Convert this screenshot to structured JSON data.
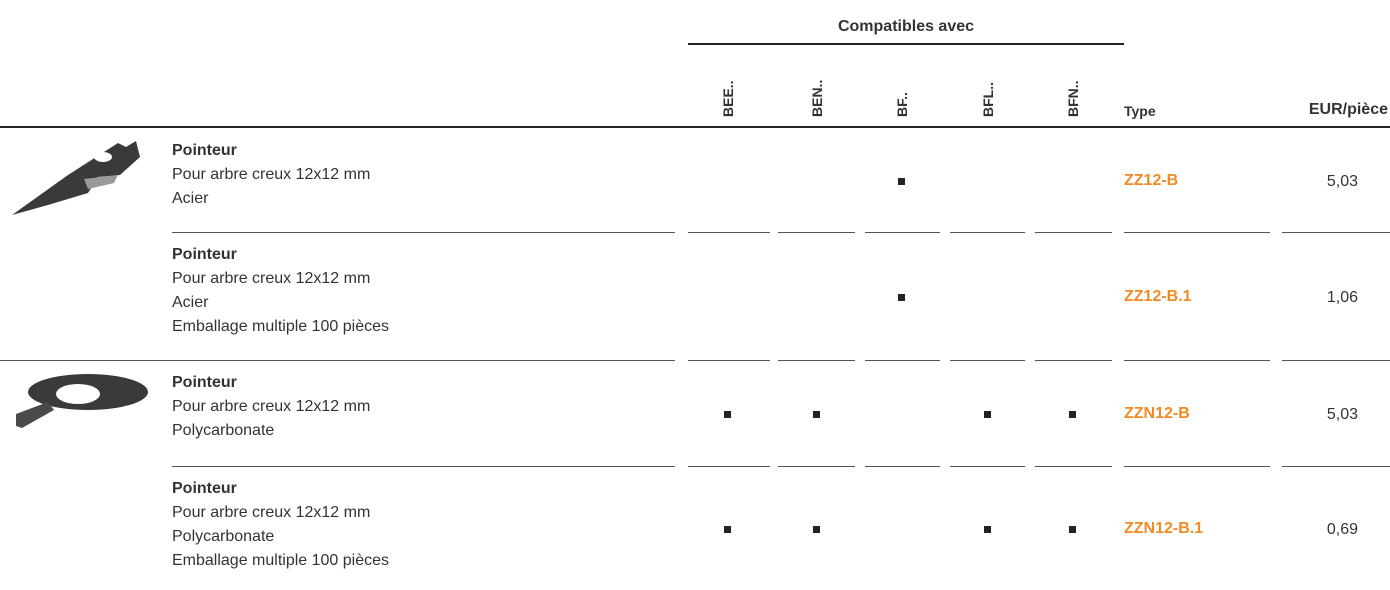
{
  "header": {
    "group_title": "Compatibles avec",
    "columns": [
      "BEE..",
      "BEN..",
      "BF..",
      "BFL..",
      "BFN.."
    ],
    "type_title": "Type",
    "price_title": "EUR/pièce"
  },
  "rows": [
    {
      "title": "Pointeur",
      "lines": [
        "Pour arbre creux 12x12 mm",
        "Acier"
      ],
      "compatible": [
        false,
        false,
        true,
        false,
        false
      ],
      "type": "ZZ12-B",
      "price": "5,03"
    },
    {
      "title": "Pointeur",
      "lines": [
        "Pour arbre creux 12x12 mm",
        "Acier",
        "Emballage multiple 100 pièces"
      ],
      "compatible": [
        false,
        false,
        true,
        false,
        false
      ],
      "type": "ZZ12-B.1",
      "price": "1,06"
    },
    {
      "title": "Pointeur",
      "lines": [
        "Pour arbre creux 12x12 mm",
        "Polycarbonate"
      ],
      "compatible": [
        true,
        true,
        false,
        true,
        true
      ],
      "type": "ZZN12-B",
      "price": "5,03"
    },
    {
      "title": "Pointeur",
      "lines": [
        "Pour arbre creux 12x12 mm",
        "Polycarbonate",
        "Emballage multiple 100 pièces"
      ],
      "compatible": [
        true,
        true,
        false,
        true,
        true
      ],
      "type": "ZZN12-B.1",
      "price": "0,69"
    }
  ]
}
